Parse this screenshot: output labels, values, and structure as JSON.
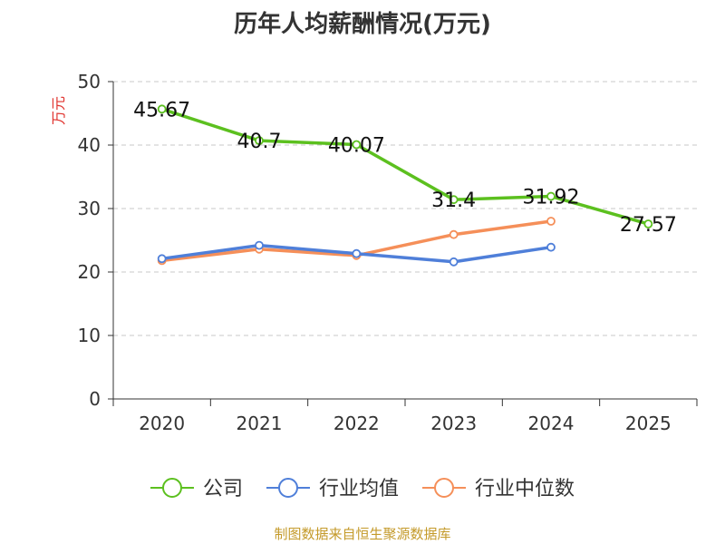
{
  "chart_data": {
    "type": "line",
    "title": "历年人均薪酬情况(万元)",
    "ylabel": "万元",
    "xlabel": "",
    "categories": [
      "2020",
      "2021",
      "2022",
      "2023",
      "2024",
      "2025"
    ],
    "ylim": [
      0,
      50
    ],
    "yticks": [
      "0",
      "10",
      "20",
      "30",
      "40",
      "50"
    ],
    "grid": true,
    "legend_position": "bottom",
    "series": [
      {
        "name": "公司",
        "color": "#5cc01f",
        "values": [
          45.67,
          40.7,
          40.07,
          31.4,
          31.92,
          27.57
        ],
        "labels": [
          "45.67",
          "40.7",
          "40.07",
          "31.4",
          "31.92",
          "27.57"
        ]
      },
      {
        "name": "行业均值",
        "color": "#4f7fd9",
        "values": [
          22.1,
          24.2,
          22.9,
          21.6,
          23.9,
          null
        ]
      },
      {
        "name": "行业中位数",
        "color": "#f58f59",
        "values": [
          21.8,
          23.6,
          22.6,
          25.9,
          28.0,
          null
        ]
      }
    ]
  },
  "source_note": "制图数据来自恒生聚源数据库"
}
